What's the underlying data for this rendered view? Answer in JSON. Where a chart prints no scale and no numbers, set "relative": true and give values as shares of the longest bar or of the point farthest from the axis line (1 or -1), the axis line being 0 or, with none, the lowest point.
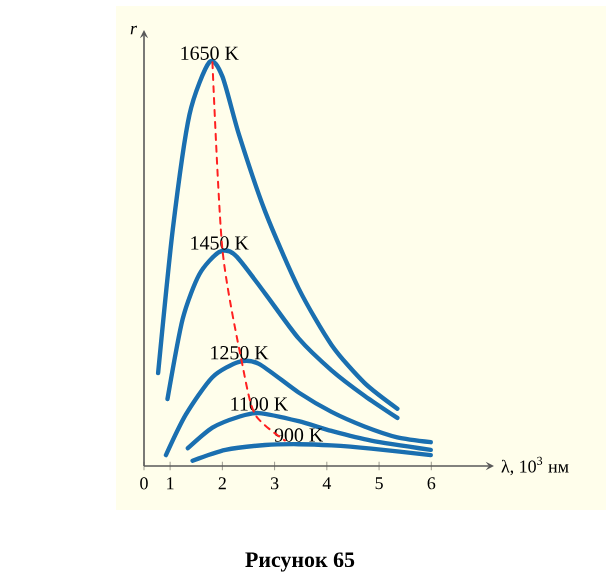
{
  "chart_data": {
    "type": "line",
    "relative": true,
    "xlabel": "λ, 10$^{3}$ нм",
    "ylabel": "r",
    "xlim": [
      0.5,
      7.2
    ],
    "xticks": [
      {
        "value": 0.5,
        "label": "0"
      },
      1,
      2,
      3,
      4,
      5,
      6
    ],
    "tick_labels": "x",
    "marker": "none",
    "annotations": [
      "**Рисунок 65**"
    ],
    "series": [
      {
        "name": "1650 K",
        "color": "#1a6fb0",
        "x": [
          0.77,
          1.05,
          1.37,
          1.75,
          2.0,
          2.32,
          2.82,
          3.46,
          4.09,
          4.72,
          5.35
        ],
        "values": [
          0.23,
          0.585,
          0.87,
          1.0,
          0.965,
          0.82,
          0.63,
          0.44,
          0.3,
          0.206,
          0.142
        ]
      },
      {
        "name": "1450 K",
        "color": "#1a6fb0",
        "x": [
          0.95,
          1.24,
          1.56,
          1.94,
          2.25,
          2.82,
          3.46,
          4.09,
          4.72,
          5.35
        ],
        "values": [
          0.166,
          0.364,
          0.475,
          0.53,
          0.522,
          0.427,
          0.316,
          0.237,
          0.174,
          0.119
        ]
      },
      {
        "name": "1250 K",
        "color": "#1a6fb0",
        "x": [
          0.92,
          1.3,
          1.81,
          2.32,
          2.7,
          3.46,
          4.09,
          4.72,
          5.35,
          5.99
        ],
        "values": [
          0.027,
          0.127,
          0.22,
          0.258,
          0.253,
          0.182,
          0.134,
          0.098,
          0.071,
          0.059
        ]
      },
      {
        "name": "1100 K",
        "color": "#1a6fb0",
        "x": [
          1.34,
          1.81,
          2.32,
          2.7,
          3.46,
          4.09,
          4.85,
          5.99
        ],
        "values": [
          0.044,
          0.095,
          0.122,
          0.131,
          0.111,
          0.087,
          0.063,
          0.04
        ]
      },
      {
        "name": "900 K",
        "color": "#1a6fb0",
        "x": [
          1.43,
          2.06,
          2.82,
          3.46,
          4.09,
          4.85,
          5.99
        ],
        "values": [
          0.013,
          0.04,
          0.052,
          0.054,
          0.051,
          0.043,
          0.027
        ]
      },
      {
        "color": "#ff2020",
        "line_style": "dashed",
        "x": [
          1.81,
          2.0,
          2.38,
          2.63,
          3.2
        ],
        "values": [
          1.0,
          0.538,
          0.253,
          0.127,
          0.063
        ]
      }
    ]
  }
}
